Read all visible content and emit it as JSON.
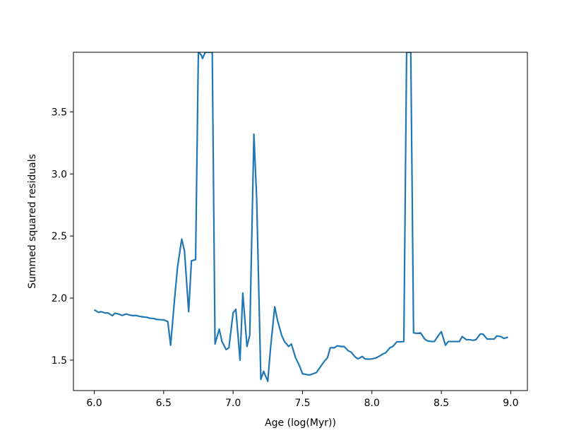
{
  "chart_data": {
    "type": "line",
    "title": "",
    "xlabel": "Age (log(Myr))",
    "ylabel": "Summed squared residuals",
    "xlim": [
      5.85,
      9.12
    ],
    "ylim": [
      1.255,
      3.98
    ],
    "xticks": [
      6.0,
      6.5,
      7.0,
      7.5,
      8.0,
      8.5,
      9.0
    ],
    "xtick_labels": [
      "6.0",
      "6.5",
      "7.0",
      "7.5",
      "8.0",
      "8.5",
      "9.0"
    ],
    "yticks": [
      1.5,
      2.0,
      2.5,
      3.0,
      3.5
    ],
    "ytick_labels": [
      "1.5",
      "2.0",
      "2.5",
      "3.0",
      "3.5"
    ],
    "grid": false,
    "legend": "none",
    "series": [
      {
        "color": "#1f77b4",
        "x": [
          6.0,
          6.03,
          6.05,
          6.08,
          6.1,
          6.13,
          6.15,
          6.18,
          6.2,
          6.23,
          6.25,
          6.28,
          6.3,
          6.33,
          6.35,
          6.38,
          6.4,
          6.43,
          6.45,
          6.48,
          6.5,
          6.53,
          6.55,
          6.58,
          6.6,
          6.63,
          6.65,
          6.68,
          6.7,
          6.73,
          6.75,
          6.77,
          6.78,
          6.8,
          6.82,
          6.85,
          6.87,
          6.9,
          6.92,
          6.95,
          6.97,
          7.0,
          7.02,
          7.05,
          7.07,
          7.1,
          7.12,
          7.15,
          7.17,
          7.2,
          7.22,
          7.25,
          7.27,
          7.3,
          7.32,
          7.35,
          7.37,
          7.4,
          7.42,
          7.45,
          7.48,
          7.5,
          7.55,
          7.6,
          7.65,
          7.68,
          7.7,
          7.73,
          7.75,
          7.78,
          7.8,
          7.83,
          7.85,
          7.88,
          7.9,
          7.93,
          7.95,
          7.98,
          8.0,
          8.03,
          8.05,
          8.08,
          8.1,
          8.13,
          8.15,
          8.18,
          8.2,
          8.23,
          8.25,
          8.28,
          8.3,
          8.33,
          8.35,
          8.38,
          8.4,
          8.43,
          8.45,
          8.48,
          8.5,
          8.53,
          8.55,
          8.58,
          8.6,
          8.63,
          8.65,
          8.68,
          8.7,
          8.73,
          8.75,
          8.78,
          8.8,
          8.83,
          8.85,
          8.88,
          8.9,
          8.93,
          8.95,
          8.98
        ],
        "y": [
          1.905,
          1.885,
          1.89,
          1.88,
          1.88,
          1.858,
          1.878,
          1.87,
          1.86,
          1.872,
          1.865,
          1.858,
          1.86,
          1.852,
          1.848,
          1.845,
          1.838,
          1.835,
          1.828,
          1.825,
          1.825,
          1.81,
          1.62,
          2.01,
          2.25,
          2.475,
          2.38,
          1.89,
          2.3,
          2.31,
          3.98,
          3.96,
          3.93,
          3.98,
          3.98,
          3.98,
          1.63,
          1.75,
          1.65,
          1.585,
          1.6,
          1.88,
          1.91,
          1.5,
          2.04,
          1.61,
          1.7,
          3.32,
          2.8,
          1.345,
          1.41,
          1.33,
          1.6,
          1.93,
          1.82,
          1.7,
          1.65,
          1.61,
          1.63,
          1.52,
          1.45,
          1.39,
          1.38,
          1.4,
          1.48,
          1.52,
          1.6,
          1.6,
          1.615,
          1.61,
          1.61,
          1.575,
          1.565,
          1.525,
          1.51,
          1.53,
          1.51,
          1.508,
          1.51,
          1.518,
          1.53,
          1.55,
          1.56,
          1.6,
          1.61,
          1.648,
          1.648,
          1.65,
          3.98,
          3.98,
          1.72,
          1.715,
          1.72,
          1.67,
          1.655,
          1.65,
          1.65,
          1.7,
          1.73,
          1.62,
          1.65,
          1.65,
          1.65,
          1.65,
          1.69,
          1.665,
          1.665,
          1.66,
          1.665,
          1.71,
          1.71,
          1.67,
          1.67,
          1.67,
          1.695,
          1.69,
          1.675,
          1.685
        ]
      }
    ]
  }
}
